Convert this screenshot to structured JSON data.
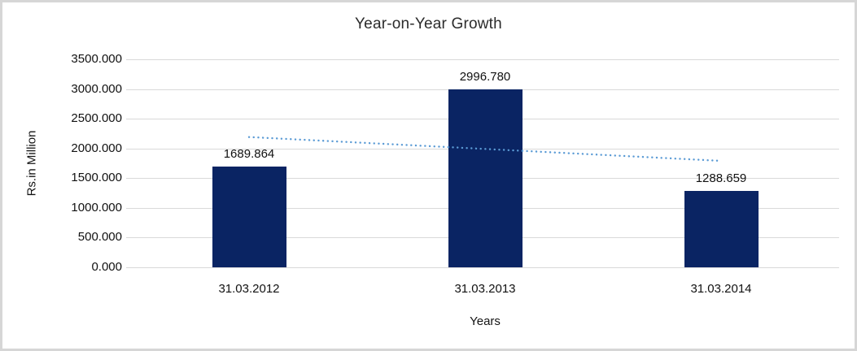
{
  "chart_data": {
    "type": "bar",
    "title": "Year-on-Year Growth",
    "xlabel": "Years",
    "ylabel": "Rs.in Million",
    "categories": [
      "31.03.2012",
      "31.03.2013",
      "31.03.2014"
    ],
    "series": [
      {
        "name": "Rs.in Million",
        "values": [
          1689.864,
          2996.78,
          1288.659
        ]
      }
    ],
    "value_labels": [
      "1689.864",
      "2996.780",
      "1288.659"
    ],
    "y_ticks": [
      "0.000",
      "500.000",
      "1000.000",
      "1500.000",
      "2000.000",
      "2500.000",
      "3000.000",
      "3500.000"
    ],
    "ylim": [
      0,
      3500
    ],
    "grid": true,
    "legend": "none",
    "trendline": {
      "type": "linear",
      "style": "dotted",
      "applies_to": "Rs.in Million"
    },
    "colors": {
      "bar": "#0A2463",
      "trendline": "#5B9BD5",
      "gridline": "#D9D9D9",
      "frame_border": "#D6D6D6",
      "title_text": "#2B2B2B",
      "axis_text": "#111111",
      "background": "#FFFFFF"
    }
  }
}
